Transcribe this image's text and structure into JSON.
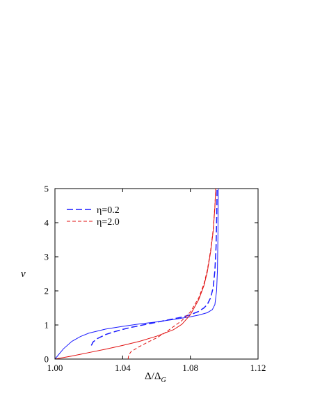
{
  "chart_data": {
    "type": "line",
    "title": "",
    "xlabel": "Δ/Δ",
    "xlabel_sub": "G",
    "ylabel": "ν",
    "xlim": [
      1.0,
      1.12
    ],
    "ylim": [
      0,
      5
    ],
    "x_ticks": [
      1.0,
      1.04,
      1.08,
      1.12
    ],
    "x_tick_labels": [
      "1.00",
      "1.04",
      "1.08",
      "1.12"
    ],
    "y_ticks": [
      0,
      1,
      2,
      3,
      4,
      5
    ],
    "y_tick_labels": [
      "0",
      "1",
      "2",
      "3",
      "4",
      "5"
    ],
    "grid": false,
    "legend_position": "top-left",
    "legend": [
      {
        "label": "η=0.2",
        "color": "#1a1aff",
        "style": "dashed"
      },
      {
        "label": "η=2.0",
        "color": "#e01010",
        "style": "dashed"
      }
    ],
    "series": [
      {
        "name": "η=0.2",
        "color": "#1a1aff",
        "style": "dashed",
        "width": 1.5,
        "x": [
          1.0215,
          1.0225,
          1.025,
          1.03,
          1.035,
          1.04,
          1.045,
          1.05,
          1.055,
          1.06,
          1.065,
          1.07,
          1.075,
          1.08,
          1.085,
          1.088,
          1.09,
          1.092,
          1.0935,
          1.0945,
          1.0952,
          1.0956,
          1.0958
        ],
        "y": [
          0.4,
          0.5,
          0.6,
          0.72,
          0.8,
          0.87,
          0.93,
          0.98,
          1.03,
          1.08,
          1.13,
          1.18,
          1.23,
          1.3,
          1.4,
          1.5,
          1.6,
          1.8,
          2.1,
          2.6,
          3.3,
          4.2,
          5.0
        ]
      },
      {
        "name": "",
        "color": "#1a1aff",
        "style": "solid",
        "width": 1,
        "x": [
          1.0,
          1.002,
          1.005,
          1.01,
          1.015,
          1.02,
          1.03,
          1.04,
          1.05,
          1.06,
          1.07,
          1.08,
          1.085,
          1.09,
          1.093,
          1.0945,
          1.0955,
          1.096,
          1.0963,
          1.0965
        ],
        "y": [
          0.0,
          0.12,
          0.3,
          0.52,
          0.66,
          0.76,
          0.88,
          0.96,
          1.03,
          1.09,
          1.16,
          1.24,
          1.29,
          1.36,
          1.45,
          1.6,
          2.0,
          2.6,
          3.6,
          5.0
        ]
      },
      {
        "name": "η=2.0",
        "color": "#e01010",
        "style": "dashed",
        "width": 1,
        "x": [
          1.0432,
          1.0436,
          1.045,
          1.05,
          1.055,
          1.06,
          1.065,
          1.07,
          1.075,
          1.08,
          1.085,
          1.088,
          1.09,
          1.092,
          1.0935,
          1.0945,
          1.095
        ],
        "y": [
          0.0,
          0.12,
          0.22,
          0.37,
          0.5,
          0.62,
          0.77,
          0.95,
          1.13,
          1.38,
          1.8,
          2.2,
          2.6,
          3.2,
          3.8,
          4.5,
          5.0
        ]
      },
      {
        "name": "",
        "color": "#e01010",
        "style": "solid",
        "width": 1,
        "x": [
          1.0,
          1.01,
          1.02,
          1.03,
          1.04,
          1.05,
          1.06,
          1.07,
          1.075,
          1.08,
          1.085,
          1.088,
          1.09,
          1.092,
          1.0935,
          1.0945,
          1.095
        ],
        "y": [
          0.0,
          0.09,
          0.19,
          0.29,
          0.4,
          0.52,
          0.67,
          0.86,
          1.02,
          1.3,
          1.75,
          2.15,
          2.55,
          3.15,
          3.75,
          4.45,
          5.0
        ]
      }
    ]
  }
}
